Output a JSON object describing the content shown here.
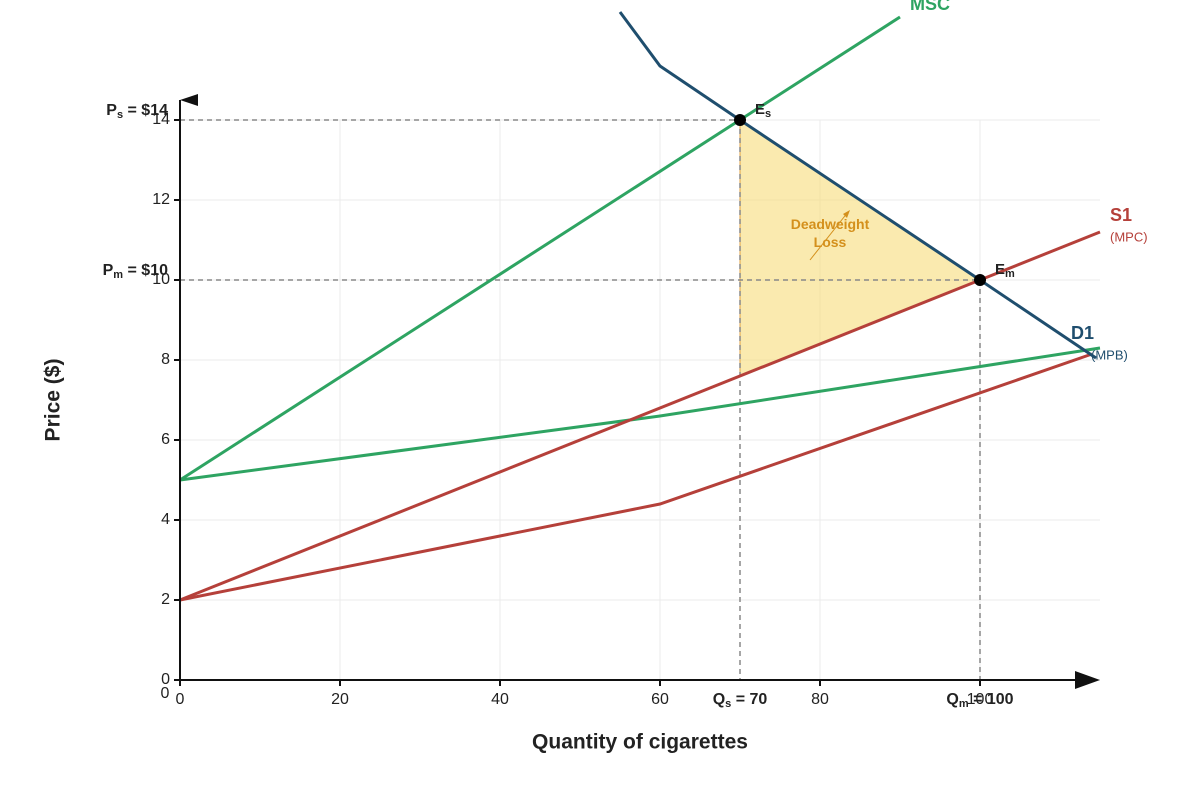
{
  "chart_data": {
    "type": "line",
    "x_label": "Quantity of cigarettes",
    "y_label": "Price ($)",
    "xlim": [
      0,
      115
    ],
    "ylim": [
      0,
      14.5
    ],
    "xticks": [
      0,
      20,
      40,
      60,
      80,
      100
    ],
    "yticks": [
      0,
      2,
      4,
      6,
      8,
      10,
      12,
      14
    ],
    "origin_label": "0",
    "grid": true,
    "series": [
      {
        "name": "MSC",
        "color": "#2ea462",
        "x": [
          0,
          90
        ],
        "values": [
          5,
          16.575
        ]
      },
      {
        "color": "#2ea462",
        "x": [
          0,
          60,
          115
        ],
        "values": [
          5,
          6.6,
          8.3
        ]
      },
      {
        "name": "S1",
        "sublabel": "(MPC)",
        "color": "#b5403a",
        "x": [
          0,
          100,
          115
        ],
        "values": [
          2,
          10,
          11.2
        ]
      },
      {
        "color": "#b5403a",
        "x": [
          0,
          60,
          114
        ],
        "values": [
          2,
          4.4,
          8.15
        ]
      },
      {
        "name": "D1",
        "sublabel": "(MPB)",
        "color": "#1f4e6e",
        "x": [
          55,
          60,
          70,
          100,
          114.5
        ],
        "values": [
          16.7,
          15.35,
          14,
          10,
          8.05
        ]
      }
    ],
    "points": [
      {
        "main": "E",
        "sub": "s",
        "x": 70,
        "y": 14
      },
      {
        "main": "E",
        "sub": "m",
        "x": 100,
        "y": 10
      }
    ],
    "price_labels": [
      {
        "main": "P",
        "sub": "s",
        "rest": " = $14",
        "value": 14
      },
      {
        "main": "P",
        "sub": "m",
        "rest": " = $10",
        "value": 10
      }
    ],
    "quantity_labels": [
      {
        "main": "Q",
        "sub": "s",
        "rest": " = 70",
        "value": 70
      },
      {
        "main": "Q",
        "sub": "m",
        "rest": " = 100",
        "value": 100
      }
    ],
    "deadweight_loss": {
      "label": [
        "Deadweight",
        "Loss"
      ],
      "color": "#f7dc7a",
      "text_color": "#d4901c",
      "x": [
        70,
        100,
        70
      ],
      "values": [
        14,
        10,
        7.6
      ]
    }
  }
}
